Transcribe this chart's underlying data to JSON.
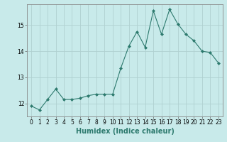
{
  "x": [
    0,
    1,
    2,
    3,
    4,
    5,
    6,
    7,
    8,
    9,
    10,
    11,
    12,
    13,
    14,
    15,
    16,
    17,
    18,
    19,
    20,
    21,
    22,
    23
  ],
  "y": [
    11.9,
    11.75,
    12.15,
    12.55,
    12.15,
    12.15,
    12.2,
    12.3,
    12.35,
    12.35,
    12.35,
    13.35,
    14.2,
    14.75,
    14.15,
    15.55,
    14.65,
    15.6,
    15.05,
    14.65,
    14.4,
    14.0,
    13.95,
    13.55
  ],
  "line_color": "#2d7a6e",
  "marker": "D",
  "marker_size": 2.0,
  "bg_color": "#c8eaea",
  "grid_color": "#b0d0d0",
  "xlabel": "Humidex (Indice chaleur)",
  "xlim": [
    -0.5,
    23.5
  ],
  "ylim": [
    11.5,
    15.8
  ],
  "yticks": [
    12,
    13,
    14,
    15
  ],
  "xtick_labels": [
    "0",
    "1",
    "2",
    "3",
    "4",
    "5",
    "6",
    "7",
    "8",
    "9",
    "10",
    "11",
    "12",
    "13",
    "14",
    "15",
    "16",
    "17",
    "18",
    "19",
    "20",
    "21",
    "22",
    "23"
  ],
  "tick_fontsize": 5.5,
  "xlabel_fontsize": 7.0,
  "linewidth": 0.8
}
